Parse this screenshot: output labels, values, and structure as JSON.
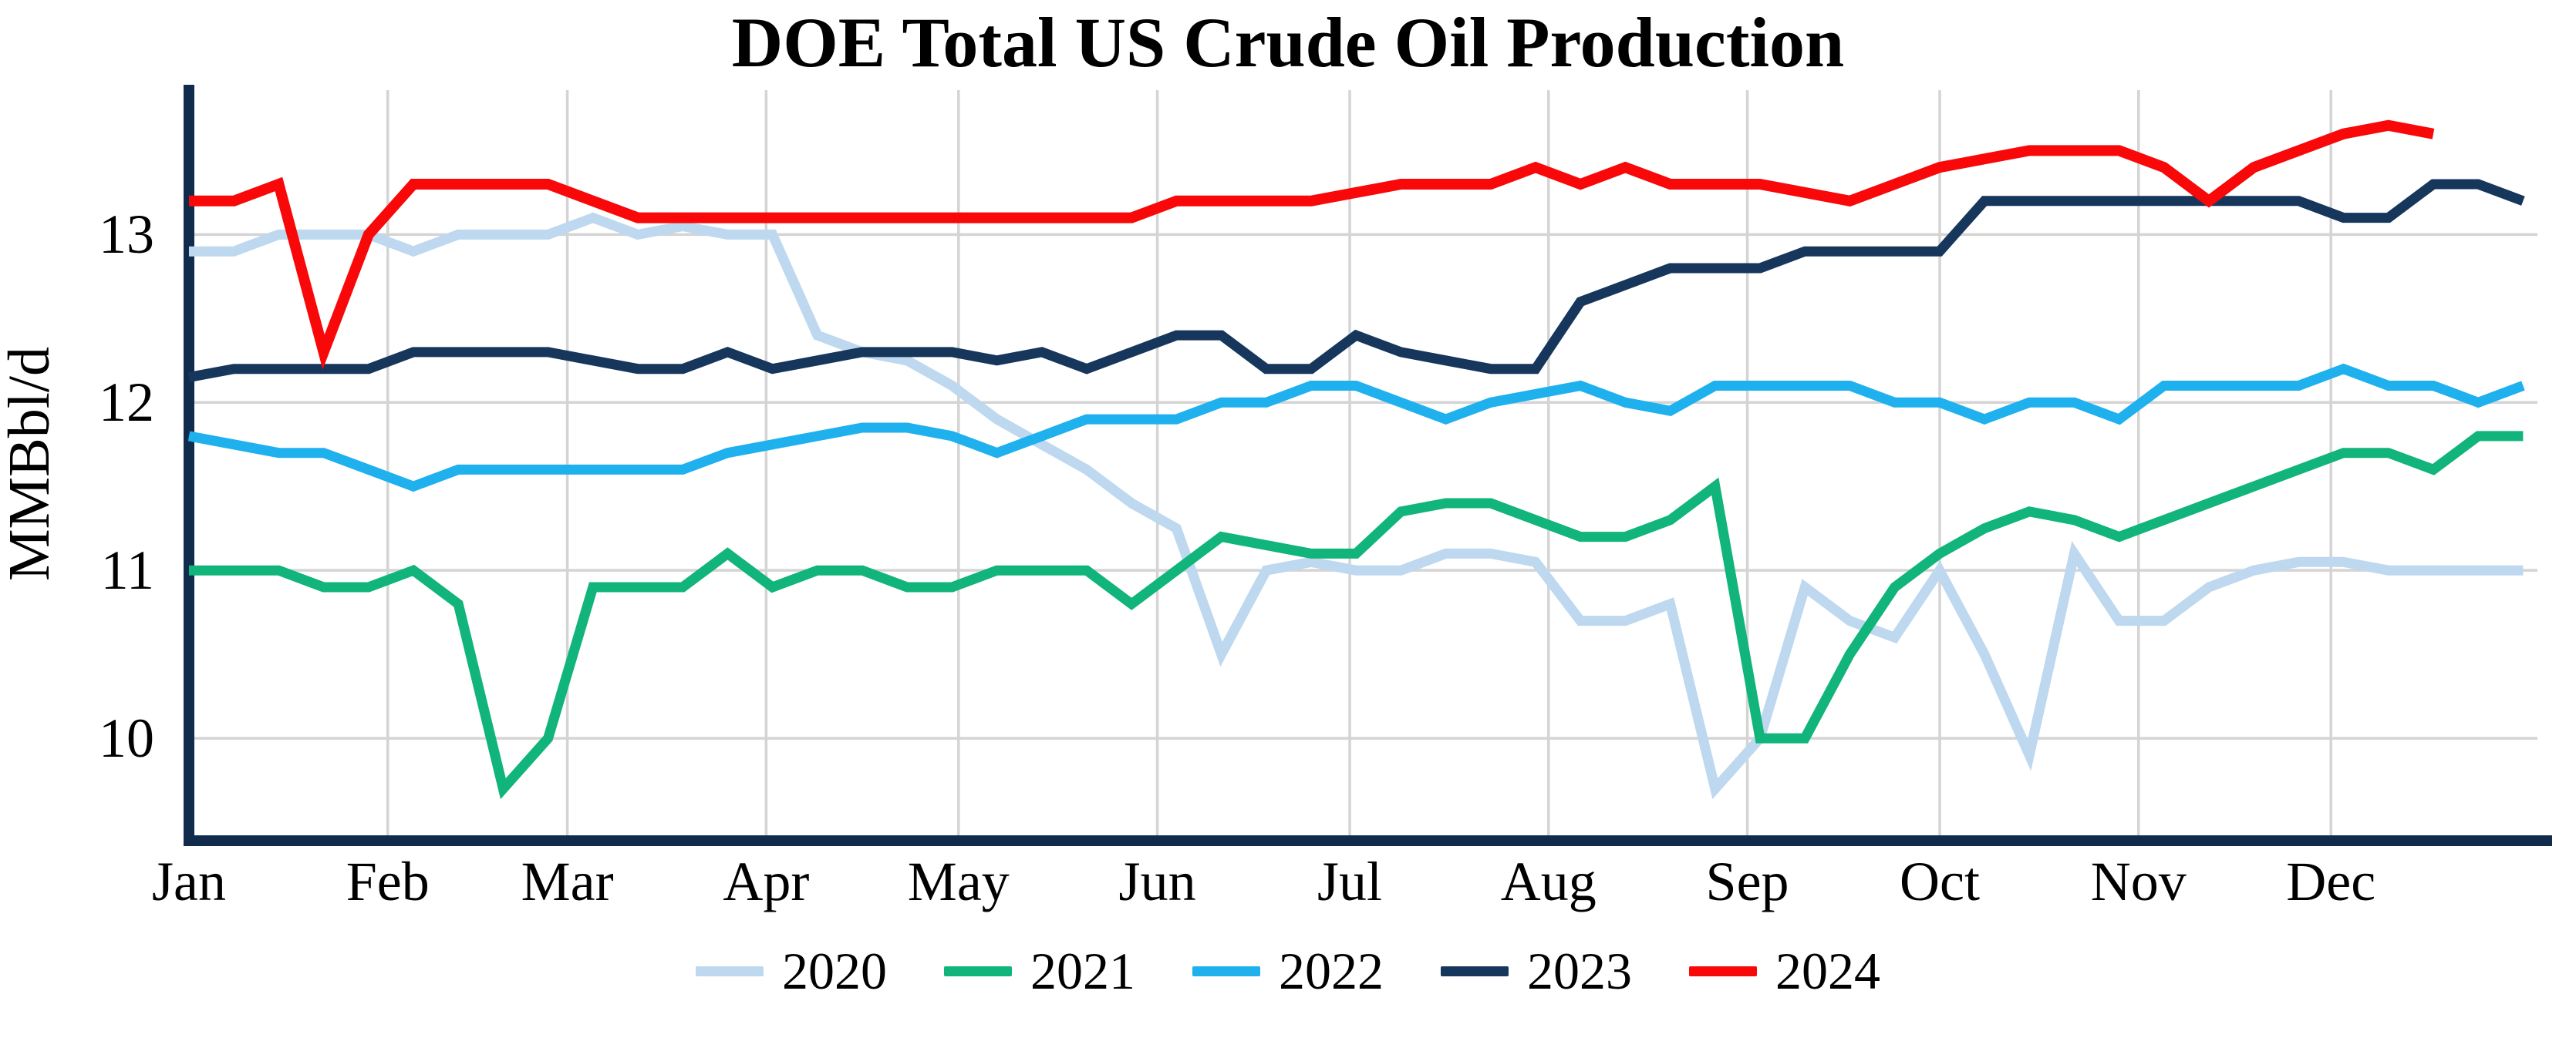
{
  "title": "DOE Total US Crude Oil Production",
  "y_axis": {
    "label": "MMBbl/d"
  },
  "x_axis": {
    "months": [
      "Jan",
      "Feb",
      "Mar",
      "Apr",
      "May",
      "Jun",
      "Jul",
      "Aug",
      "Sep",
      "Oct",
      "Nov",
      "Dec"
    ]
  },
  "chart_data": {
    "type": "line",
    "title": "DOE Total US Crude Oil Production",
    "xlabel": "",
    "ylabel": "MMBbl/d",
    "x_unit": "week of year (Jan–Dec)",
    "grid": true,
    "legend_position": "bottom",
    "ylim": [
      9.39,
      13.86
    ],
    "yticks": [
      13,
      12,
      11,
      10
    ],
    "months": [
      "Jan",
      "Feb",
      "Mar",
      "Apr",
      "May",
      "Jun",
      "Jul",
      "Aug",
      "Sep",
      "Oct",
      "Nov",
      "Dec"
    ],
    "axis_color": "#112B4D",
    "grid_color": "#D4D4D4",
    "series": [
      {
        "name": "2020",
        "color": "#BDD8EF",
        "values": [
          12.9,
          12.9,
          13.0,
          13.0,
          13.0,
          12.9,
          13.0,
          13.0,
          13.0,
          13.1,
          13.0,
          13.05,
          13.0,
          13.0,
          12.4,
          12.3,
          12.25,
          12.1,
          11.9,
          11.75,
          11.6,
          11.4,
          11.25,
          10.5,
          11.0,
          11.05,
          11.0,
          11.0,
          11.1,
          11.1,
          11.05,
          10.7,
          10.7,
          10.8,
          9.7,
          10.0,
          10.9,
          10.7,
          10.6,
          11.0,
          10.5,
          9.9,
          11.1,
          10.7,
          10.7,
          10.9,
          11.0,
          11.05,
          11.05,
          11.0,
          11.0,
          11.0,
          11.0
        ]
      },
      {
        "name": "2021",
        "color": "#11B47A",
        "values": [
          11.0,
          11.0,
          11.0,
          10.9,
          10.9,
          11.0,
          10.8,
          9.7,
          10.0,
          10.9,
          10.9,
          10.9,
          11.1,
          10.9,
          11.0,
          11.0,
          10.9,
          10.9,
          11.0,
          11.0,
          11.0,
          10.8,
          11.0,
          11.2,
          11.15,
          11.1,
          11.1,
          11.35,
          11.4,
          11.4,
          11.3,
          11.2,
          11.2,
          11.3,
          11.5,
          10.0,
          10.0,
          10.5,
          10.9,
          11.1,
          11.25,
          11.35,
          11.3,
          11.2,
          11.3,
          11.4,
          11.5,
          11.6,
          11.7,
          11.7,
          11.6,
          11.8,
          11.8
        ]
      },
      {
        "name": "2022",
        "color": "#1FB0EE",
        "values": [
          11.8,
          11.75,
          11.7,
          11.7,
          11.6,
          11.5,
          11.6,
          11.6,
          11.6,
          11.6,
          11.6,
          11.6,
          11.7,
          11.75,
          11.8,
          11.85,
          11.85,
          11.8,
          11.7,
          11.8,
          11.9,
          11.9,
          11.9,
          12.0,
          12.0,
          12.1,
          12.1,
          12.0,
          11.9,
          12.0,
          12.05,
          12.1,
          12.0,
          11.95,
          12.1,
          12.1,
          12.1,
          12.1,
          12.0,
          12.0,
          11.9,
          12.0,
          12.0,
          11.9,
          12.1,
          12.1,
          12.1,
          12.1,
          12.2,
          12.1,
          12.1,
          12.0,
          12.1
        ]
      },
      {
        "name": "2023",
        "color": "#16365C",
        "values": [
          12.15,
          12.2,
          12.2,
          12.2,
          12.2,
          12.3,
          12.3,
          12.3,
          12.3,
          12.25,
          12.2,
          12.2,
          12.3,
          12.2,
          12.25,
          12.3,
          12.3,
          12.3,
          12.25,
          12.3,
          12.2,
          12.3,
          12.4,
          12.4,
          12.2,
          12.2,
          12.4,
          12.3,
          12.25,
          12.2,
          12.2,
          12.6,
          12.7,
          12.8,
          12.8,
          12.8,
          12.9,
          12.9,
          12.9,
          12.9,
          13.2,
          13.2,
          13.2,
          13.2,
          13.2,
          13.2,
          13.2,
          13.2,
          13.1,
          13.1,
          13.3,
          13.3,
          13.2
        ]
      },
      {
        "name": "2024",
        "color": "#F80808",
        "values": [
          13.2,
          13.2,
          13.3,
          12.3,
          13.0,
          13.3,
          13.3,
          13.3,
          13.3,
          13.2,
          13.1,
          13.1,
          13.1,
          13.1,
          13.1,
          13.1,
          13.1,
          13.1,
          13.1,
          13.1,
          13.1,
          13.1,
          13.2,
          13.2,
          13.2,
          13.2,
          13.25,
          13.3,
          13.3,
          13.3,
          13.4,
          13.3,
          13.4,
          13.3,
          13.3,
          13.3,
          13.25,
          13.2,
          13.3,
          13.4,
          13.45,
          13.5,
          13.5,
          13.5,
          13.4,
          13.2,
          13.4,
          13.5,
          13.6,
          13.65,
          13.6
        ]
      }
    ]
  }
}
